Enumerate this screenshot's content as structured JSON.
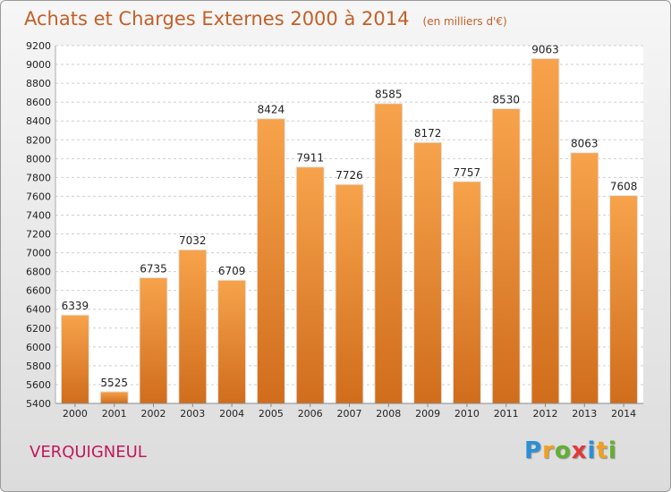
{
  "chart_data": {
    "type": "bar",
    "title": "Achats et Charges Externes 2000 à 2014",
    "subtitle": "(en milliers d'€)",
    "categories": [
      "2000",
      "2001",
      "2002",
      "2003",
      "2004",
      "2005",
      "2006",
      "2007",
      "2008",
      "2009",
      "2010",
      "2011",
      "2012",
      "2013",
      "2014"
    ],
    "values": [
      6339,
      5525,
      6735,
      7032,
      6709,
      8424,
      7911,
      7726,
      8585,
      8172,
      7757,
      8530,
      9063,
      8063,
      7608
    ],
    "ylim": [
      5400,
      9200
    ],
    "yticks": [
      5400,
      5600,
      5800,
      6000,
      6200,
      6400,
      6600,
      6800,
      7000,
      7200,
      7400,
      7600,
      7800,
      8000,
      8200,
      8400,
      8600,
      8800,
      9000,
      9200
    ],
    "grid": true,
    "bar_color": "#f08a33"
  },
  "footer": {
    "city": "VERQUIGNEUL",
    "logo_letters": [
      {
        "ch": "P",
        "color": "#2b8fd6"
      },
      {
        "ch": "r",
        "color": "#f0a020"
      },
      {
        "ch": "o",
        "color": "#62b030"
      },
      {
        "ch": "x",
        "color": "#e03a3a"
      },
      {
        "ch": "i",
        "color": "#2b8fd6"
      },
      {
        "ch": "t",
        "color": "#f0a020"
      },
      {
        "ch": "i",
        "color": "#62b030"
      }
    ]
  }
}
